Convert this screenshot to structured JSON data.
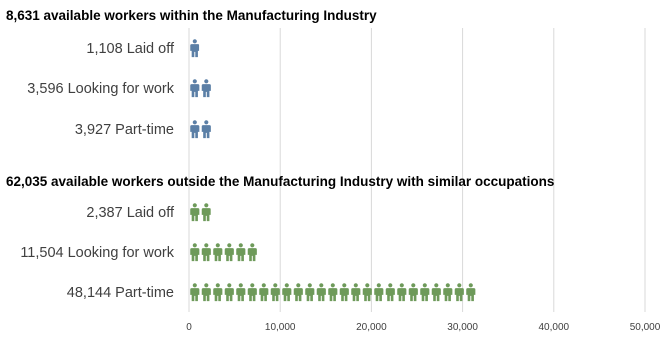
{
  "chart_data": {
    "type": "bar",
    "orientation": "horizontal",
    "mark_style": "pictograph-worker-figures",
    "xlim": [
      0,
      50000
    ],
    "xticks": [
      0,
      10000,
      20000,
      30000,
      40000,
      50000
    ],
    "xtick_labels": [
      "0",
      "10,000",
      "20,000",
      "30,000",
      "40,000",
      "50,000"
    ],
    "grid": true,
    "units_per_icon": 2000,
    "groups": [
      {
        "title": "8,631 available workers within the Manufacturing Industry",
        "color": "#5b7fa6",
        "categories": [
          "1,108 Laid off",
          "3,596 Looking for work",
          "3,927 Part-time"
        ],
        "values": [
          1108,
          3596,
          3927
        ]
      },
      {
        "title": "62,035 available workers outside the Manufacturing Industry with similar occupations",
        "color": "#6e9a5a",
        "categories": [
          "2,387 Laid off",
          "11,504 Looking for work",
          "48,144 Part-time"
        ],
        "values": [
          2387,
          11504,
          48144
        ]
      }
    ]
  }
}
